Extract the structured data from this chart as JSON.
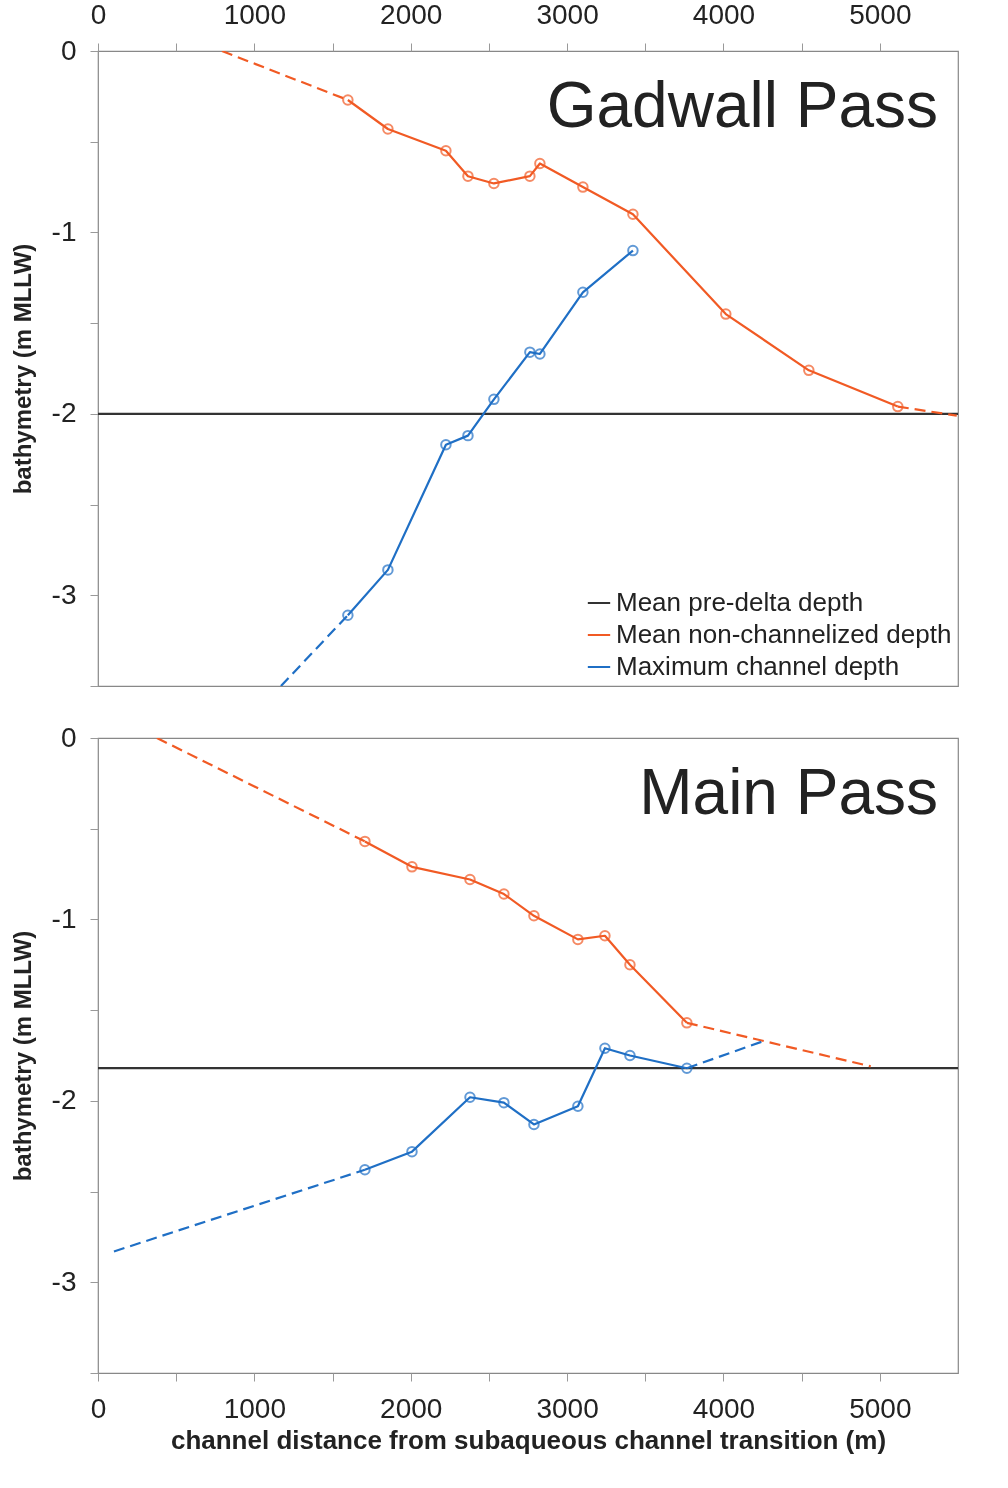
{
  "chart_data": [
    {
      "type": "line",
      "xlim": [
        0,
        5500
      ],
      "xticks": [
        0,
        {
          "value": 500,
          "label": null
        },
        1000,
        {
          "value": 1500,
          "label": null
        },
        2000,
        {
          "value": 2500,
          "label": null
        },
        3000,
        {
          "value": 3500,
          "label": null
        },
        4000,
        {
          "value": 4500,
          "label": null
        },
        5000
      ],
      "ylim": [
        -3.5,
        0
      ],
      "yticks": [
        {
          "value": -3.5,
          "label": null
        },
        -3,
        {
          "value": -2.5,
          "label": null
        },
        -2,
        {
          "value": -1.5,
          "label": null
        },
        -1,
        {
          "value": -0.5,
          "label": null
        },
        0
      ],
      "ylabel": "bathymetry (m MLLW)",
      "annotations": [
        "Gadwall Pass"
      ],
      "legend": "bottom right",
      "grid": false,
      "ref_lines": [
        {
          "axis": "y",
          "value": -2,
          "label": "Mean pre-delta depth",
          "color": "#333333"
        }
      ],
      "series": [
        {
          "name": "Mean non-channelized depth",
          "color": "#f15a24",
          "marker": "circle",
          "line_style": "solid",
          "x": [
            1598,
            1854,
            2225,
            2366,
            2532,
            2762,
            2826,
            3101,
            3421,
            4015,
            4546,
            5115
          ],
          "values": [
            -0.27,
            -0.43,
            -0.55,
            -0.69,
            -0.73,
            -0.69,
            -0.62,
            -0.75,
            -0.9,
            -1.45,
            -1.76,
            -1.96
          ]
        },
        {
          "name": "Maximum channel depth",
          "color": "#1f6fc5",
          "marker": "circle",
          "line_style": "solid",
          "x": [
            1598,
            1854,
            2225,
            2366,
            2532,
            2762,
            2826,
            3101,
            3421
          ],
          "values": [
            -3.11,
            -2.86,
            -2.17,
            -2.12,
            -1.92,
            -1.66,
            -1.67,
            -1.33,
            -1.1
          ]
        },
        {
          "color": "#f15a24",
          "marker": "none",
          "line_style": "dashed",
          "x": [
            793,
            1598
          ],
          "values": [
            0,
            -0.27
          ]
        },
        {
          "color": "#f15a24",
          "marker": "none",
          "line_style": "dashed",
          "x": [
            5115,
            5492
          ],
          "values": [
            -1.96,
            -2.01
          ]
        },
        {
          "color": "#1f6fc5",
          "marker": "none",
          "line_style": "dashed",
          "x": [
            1170,
            1598
          ],
          "values": [
            -3.5,
            -3.11
          ]
        }
      ]
    },
    {
      "type": "line",
      "xlim": [
        0,
        5500
      ],
      "xticks": [
        0,
        {
          "value": 500,
          "label": null
        },
        1000,
        {
          "value": 1500,
          "label": null
        },
        2000,
        {
          "value": 2500,
          "label": null
        },
        3000,
        {
          "value": 3500,
          "label": null
        },
        4000,
        {
          "value": 4500,
          "label": null
        },
        5000
      ],
      "ylim": [
        -3.5,
        0
      ],
      "yticks": [
        {
          "value": -3.5,
          "label": null
        },
        -3,
        {
          "value": -2.5,
          "label": null
        },
        -2,
        {
          "value": -1.5,
          "label": null
        },
        -1,
        {
          "value": -0.5,
          "label": null
        },
        0
      ],
      "xlabel": "channel distance from subaqueous channel transition (m)",
      "ylabel": "bathymetry (m MLLW)",
      "annotations": [
        "Main Pass"
      ],
      "grid": false,
      "ref_lines": [
        {
          "axis": "y",
          "value": -1.82,
          "color": "#333333"
        }
      ],
      "series": [
        {
          "color": "#f15a24",
          "marker": "circle",
          "line_style": "solid",
          "x": [
            1707,
            2008,
            2379,
            2596,
            2788,
            3069,
            3242,
            3402,
            3766
          ],
          "values": [
            -0.57,
            -0.71,
            -0.78,
            -0.86,
            -0.98,
            -1.11,
            -1.09,
            -1.25,
            -1.57
          ]
        },
        {
          "color": "#1f6fc5",
          "marker": "circle",
          "line_style": "solid",
          "x": [
            1707,
            2008,
            2379,
            2596,
            2788,
            3069,
            3242,
            3402,
            3766
          ],
          "values": [
            -2.38,
            -2.28,
            -1.98,
            -2.01,
            -2.13,
            -2.03,
            -1.71,
            -1.75,
            -1.82
          ]
        },
        {
          "color": "#f15a24",
          "marker": "none",
          "line_style": "dashed",
          "x": [
            377,
            1707
          ],
          "values": [
            0,
            -0.57
          ]
        },
        {
          "color": "#f15a24",
          "marker": "none",
          "line_style": "dashed",
          "x": [
            3766,
            4942
          ],
          "values": [
            -1.57,
            -1.81
          ]
        },
        {
          "color": "#1f6fc5",
          "marker": "none",
          "line_style": "dashed",
          "x": [
            102,
            1707
          ],
          "values": [
            -2.83,
            -2.38
          ]
        },
        {
          "color": "#1f6fc5",
          "marker": "none",
          "line_style": "dashed",
          "x": [
            3766,
            4258
          ],
          "values": [
            -1.82,
            -1.67
          ]
        }
      ]
    }
  ]
}
